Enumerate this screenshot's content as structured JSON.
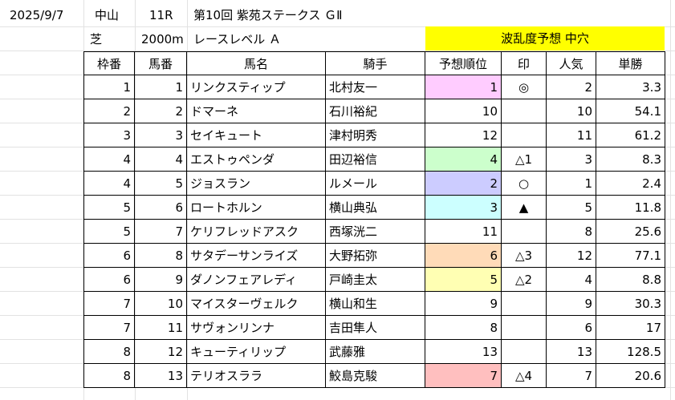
{
  "race": {
    "date": "2025/9/7",
    "venue": "中山",
    "race_no": "11R",
    "name": "第10回 紫苑ステークス ＧⅡ",
    "surface": "芝",
    "distance": "2000m",
    "level": "レースレベル Ａ",
    "risk_label": "波乱度予想 中穴",
    "risk_color": "#ffff00"
  },
  "table": {
    "headers": [
      "枠番",
      "馬番",
      "馬名",
      "騎手",
      "予想順位",
      "印",
      "人気",
      "単勝"
    ],
    "rows": [
      {
        "waku": "1",
        "uma": "1",
        "name": "リンクスティップ",
        "jockey": "北村友一",
        "rank": "1",
        "mark": "◎",
        "pop": "2",
        "odds": "3.3",
        "color": "#ffccff"
      },
      {
        "waku": "2",
        "uma": "2",
        "name": "ドマーネ",
        "jockey": "石川裕紀",
        "rank": "10",
        "mark": "",
        "pop": "10",
        "odds": "54.1",
        "color": ""
      },
      {
        "waku": "3",
        "uma": "3",
        "name": "セイキュート",
        "jockey": "津村明秀",
        "rank": "12",
        "mark": "",
        "pop": "11",
        "odds": "61.2",
        "color": ""
      },
      {
        "waku": "4",
        "uma": "4",
        "name": "エストゥペンダ",
        "jockey": "田辺裕信",
        "rank": "4",
        "mark": "△1",
        "pop": "3",
        "odds": "8.3",
        "color": "#ccffcc"
      },
      {
        "waku": "4",
        "uma": "5",
        "name": "ジョスラン",
        "jockey": "ルメール",
        "rank": "2",
        "mark": "○",
        "pop": "1",
        "odds": "2.4",
        "color": "#ccccff"
      },
      {
        "waku": "5",
        "uma": "6",
        "name": "ロートホルン",
        "jockey": "横山典弘",
        "rank": "3",
        "mark": "▲",
        "pop": "5",
        "odds": "11.8",
        "color": "#ccffff"
      },
      {
        "waku": "5",
        "uma": "7",
        "name": "ケリフレッドアスク",
        "jockey": "西塚洸二",
        "rank": "11",
        "mark": "",
        "pop": "8",
        "odds": "25.6",
        "color": ""
      },
      {
        "waku": "6",
        "uma": "8",
        "name": "サタデーサンライズ",
        "jockey": "大野拓弥",
        "rank": "6",
        "mark": "△3",
        "pop": "12",
        "odds": "77.1",
        "color": "#ffdbb8"
      },
      {
        "waku": "6",
        "uma": "9",
        "name": "ダノンフェアレディ",
        "jockey": "戸崎圭太",
        "rank": "5",
        "mark": "△2",
        "pop": "4",
        "odds": "8.8",
        "color": "#ffffb3"
      },
      {
        "waku": "7",
        "uma": "10",
        "name": "マイスターヴェルク",
        "jockey": "横山和生",
        "rank": "9",
        "mark": "",
        "pop": "9",
        "odds": "30.3",
        "color": ""
      },
      {
        "waku": "7",
        "uma": "11",
        "name": "サヴォンリンナ",
        "jockey": "吉田隼人",
        "rank": "8",
        "mark": "",
        "pop": "6",
        "odds": "17",
        "color": ""
      },
      {
        "waku": "8",
        "uma": "12",
        "name": "キューティリップ",
        "jockey": "武藤雅",
        "rank": "13",
        "mark": "",
        "pop": "13",
        "odds": "128.5",
        "color": ""
      },
      {
        "waku": "8",
        "uma": "13",
        "name": "テリオスララ",
        "jockey": "鮫島克駿",
        "rank": "7",
        "mark": "△4",
        "pop": "7",
        "odds": "20.6",
        "color": "#ffbfbf"
      }
    ]
  }
}
